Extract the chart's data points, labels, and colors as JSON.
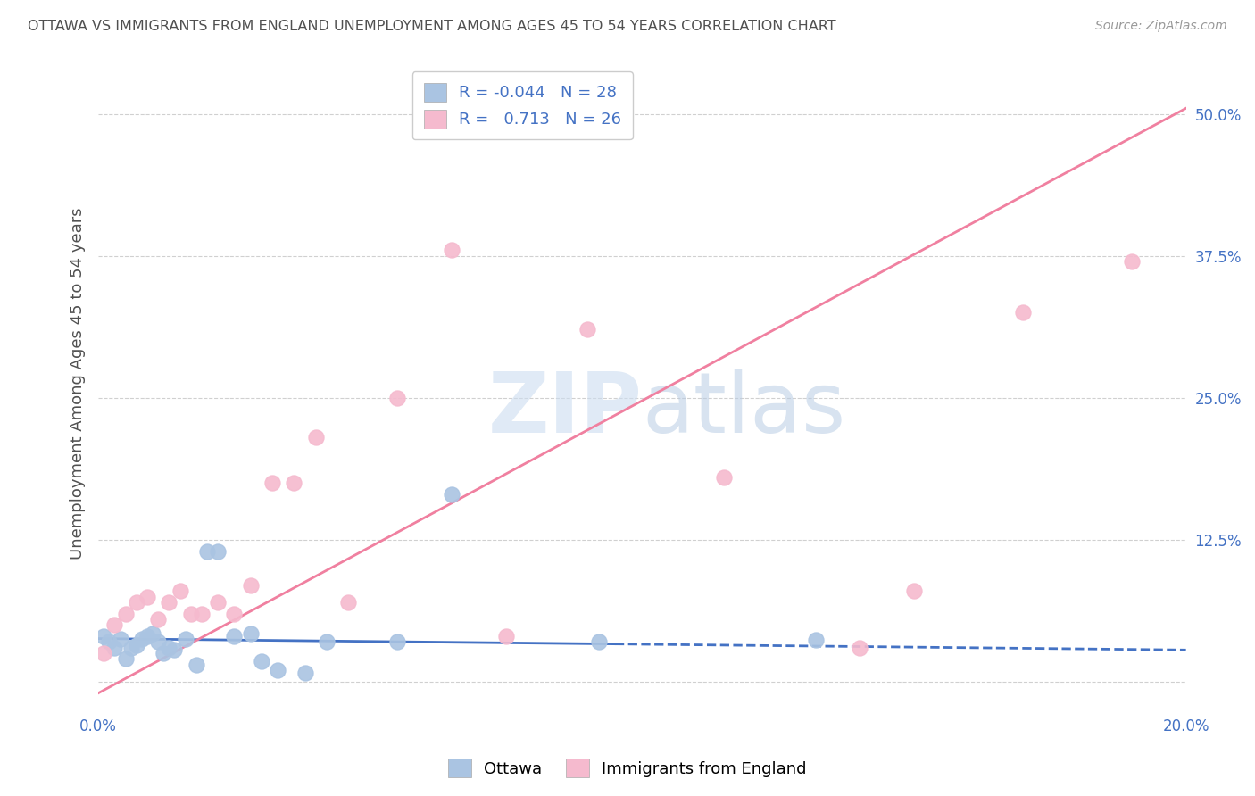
{
  "title": "OTTAWA VS IMMIGRANTS FROM ENGLAND UNEMPLOYMENT AMONG AGES 45 TO 54 YEARS CORRELATION CHART",
  "source": "Source: ZipAtlas.com",
  "ylabel": "Unemployment Among Ages 45 to 54 years",
  "xlabel": "",
  "xlim": [
    0.0,
    0.2
  ],
  "ylim": [
    -0.025,
    0.55
  ],
  "yticks": [
    0.0,
    0.125,
    0.25,
    0.375,
    0.5
  ],
  "ytick_labels": [
    "",
    "12.5%",
    "25.0%",
    "37.5%",
    "50.0%"
  ],
  "xticks": [
    0.0,
    0.05,
    0.1,
    0.15,
    0.2
  ],
  "xtick_labels": [
    "0.0%",
    "",
    "",
    "",
    "20.0%"
  ],
  "watermark_zip": "ZIP",
  "watermark_atlas": "atlas",
  "legend_ottawa_r": "-0.044",
  "legend_ottawa_n": "28",
  "legend_england_r": "0.713",
  "legend_england_n": "26",
  "ottawa_color": "#aac4e2",
  "england_color": "#f5bace",
  "ottawa_line_color": "#4472c4",
  "england_line_color": "#f080a0",
  "background_color": "#ffffff",
  "grid_color": "#d0d0d0",
  "title_color": "#505050",
  "axis_label_color": "#4472c4",
  "legend_border_color": "#cccccc",
  "ottawa_x": [
    0.001,
    0.002,
    0.003,
    0.004,
    0.005,
    0.006,
    0.007,
    0.008,
    0.009,
    0.01,
    0.011,
    0.012,
    0.013,
    0.014,
    0.016,
    0.018,
    0.02,
    0.022,
    0.025,
    0.028,
    0.03,
    0.033,
    0.038,
    0.042,
    0.055,
    0.065,
    0.092,
    0.132
  ],
  "ottawa_y": [
    0.04,
    0.035,
    0.03,
    0.038,
    0.02,
    0.03,
    0.032,
    0.038,
    0.04,
    0.042,
    0.035,
    0.025,
    0.03,
    0.028,
    0.038,
    0.015,
    0.115,
    0.115,
    0.04,
    0.042,
    0.018,
    0.01,
    0.008,
    0.035,
    0.035,
    0.165,
    0.035,
    0.037
  ],
  "england_x": [
    0.001,
    0.003,
    0.005,
    0.007,
    0.009,
    0.011,
    0.013,
    0.015,
    0.017,
    0.019,
    0.022,
    0.025,
    0.028,
    0.032,
    0.036,
    0.04,
    0.046,
    0.055,
    0.065,
    0.075,
    0.09,
    0.115,
    0.14,
    0.15,
    0.17,
    0.19
  ],
  "england_y": [
    0.025,
    0.05,
    0.06,
    0.07,
    0.075,
    0.055,
    0.07,
    0.08,
    0.06,
    0.06,
    0.07,
    0.06,
    0.085,
    0.175,
    0.175,
    0.215,
    0.07,
    0.25,
    0.38,
    0.04,
    0.31,
    0.18,
    0.03,
    0.08,
    0.325,
    0.37
  ],
  "england_line_x0": 0.0,
  "england_line_y0": -0.01,
  "england_line_x1": 0.2,
  "england_line_y1": 0.505,
  "ottawa_line_x0": 0.0,
  "ottawa_line_y0": 0.038,
  "ottawa_line_x1": 0.2,
  "ottawa_line_y1": 0.028
}
